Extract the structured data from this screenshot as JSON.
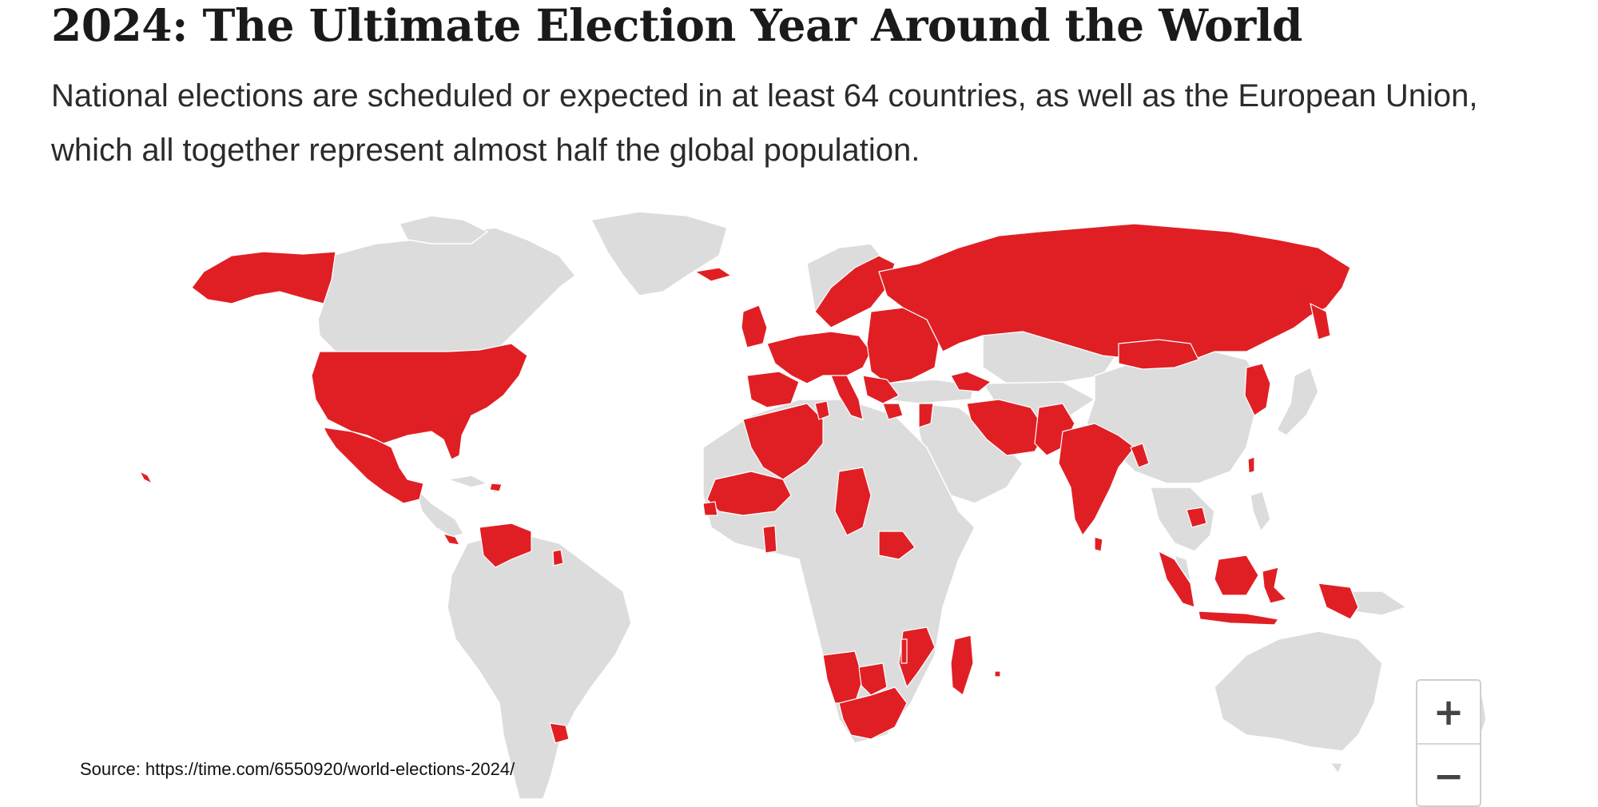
{
  "header": {
    "title": "2024: The Ultimate Election Year Around the World",
    "subtitle": "National elections are scheduled or expected in at least 64 countries, as well as the European Union, which all together represent almost half the global population."
  },
  "map": {
    "colors": {
      "election": "#e01f24",
      "other": "#dcdcdc",
      "border": "#ffffff",
      "background": "#ffffff"
    },
    "election_regions": [
      "United States",
      "Alaska",
      "Mexico",
      "Panama",
      "Dominican Republic",
      "Venezuela",
      "Suriname",
      "Uruguay",
      "Iceland",
      "United Kingdom",
      "Portugal",
      "Spain",
      "France",
      "Belgium",
      "Netherlands",
      "Germany",
      "Denmark",
      "Sweden",
      "Finland",
      "Norway",
      "Estonia",
      "Latvia",
      "Lithuania",
      "Poland",
      "Czechia",
      "Slovakia",
      "Austria",
      "Hungary",
      "Romania",
      "Bulgaria",
      "Croatia",
      "Slovenia",
      "Italy",
      "Greece",
      "Belarus",
      "Ukraine",
      "North Macedonia",
      "Russia",
      "Mongolia",
      "Georgia",
      "Azerbaijan",
      "Iran",
      "Pakistan",
      "India",
      "Sri Lanka",
      "Bangladesh",
      "Bhutan",
      "North Korea",
      "South Korea",
      "Taiwan",
      "Cambodia",
      "Indonesia",
      "Algeria",
      "Tunisia",
      "Mauritania",
      "Mali",
      "Senegal",
      "Togo",
      "Ghana",
      "Chad",
      "South Sudan",
      "Mozambique",
      "Malawi",
      "Madagascar",
      "Mauritius",
      "Namibia",
      "Botswana",
      "South Africa",
      "Jordan",
      "Syria"
    ]
  },
  "zoom": {
    "in_label": "+",
    "out_label": "−"
  },
  "footer": {
    "source": "Source: https://time.com/6550920/world-elections-2024/"
  }
}
